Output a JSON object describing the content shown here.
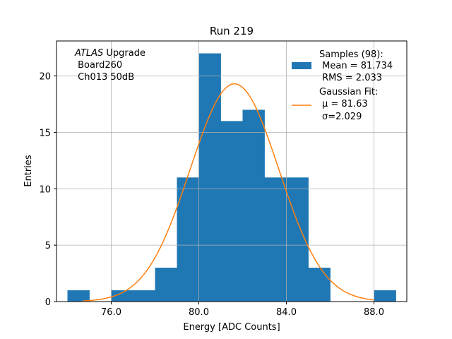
{
  "chart_data": {
    "type": "bar",
    "title": "Run 219",
    "xlabel": "Energy [ADC Counts]",
    "ylabel": "Entries",
    "xlim": [
      73.5,
      89.5
    ],
    "ylim": [
      0,
      23.1
    ],
    "grid": true,
    "x_ticks": [
      76,
      80,
      84,
      88
    ],
    "x_tick_labels": [
      "76.0",
      "80.0",
      "84.0",
      "88.0"
    ],
    "y_ticks": [
      0,
      5,
      10,
      15,
      20
    ],
    "y_tick_labels": [
      "0",
      "5",
      "10",
      "15",
      "20"
    ],
    "bins": [
      {
        "x0": 74,
        "x1": 75,
        "count": 1
      },
      {
        "x0": 75,
        "x1": 76,
        "count": 0
      },
      {
        "x0": 76,
        "x1": 77,
        "count": 1
      },
      {
        "x0": 77,
        "x1": 78,
        "count": 1
      },
      {
        "x0": 78,
        "x1": 79,
        "count": 3
      },
      {
        "x0": 79,
        "x1": 80,
        "count": 11
      },
      {
        "x0": 80,
        "x1": 81,
        "count": 22
      },
      {
        "x0": 81,
        "x1": 82,
        "count": 16
      },
      {
        "x0": 82,
        "x1": 83,
        "count": 17
      },
      {
        "x0": 83,
        "x1": 84,
        "count": 11
      },
      {
        "x0": 84,
        "x1": 85,
        "count": 11
      },
      {
        "x0": 85,
        "x1": 86,
        "count": 3
      },
      {
        "x0": 86,
        "x1": 87,
        "count": 0
      },
      {
        "x0": 87,
        "x1": 88,
        "count": 0
      },
      {
        "x0": 88,
        "x1": 89,
        "count": 1
      }
    ],
    "fit": {
      "mu": 81.63,
      "sigma": 2.029,
      "x_range": [
        74.7,
        88.0
      ],
      "peak": 19.3
    },
    "colors": {
      "hist": "#1f77b4",
      "fit": "#ff7f0e",
      "grid": "#b0b0b0"
    },
    "annotation": {
      "italic_part": "ATLAS",
      "rest": " Upgrade",
      "line2": " Board260",
      "line3": " Ch013 50dB"
    },
    "legend": {
      "placement": "top-right",
      "hist_lines": [
        "Samples (98):",
        " Mean = 81.734",
        " RMS = 2.033"
      ],
      "fit_lines": [
        "Gaussian Fit:",
        "μ = 81.63",
        "σ=2.029"
      ]
    }
  }
}
